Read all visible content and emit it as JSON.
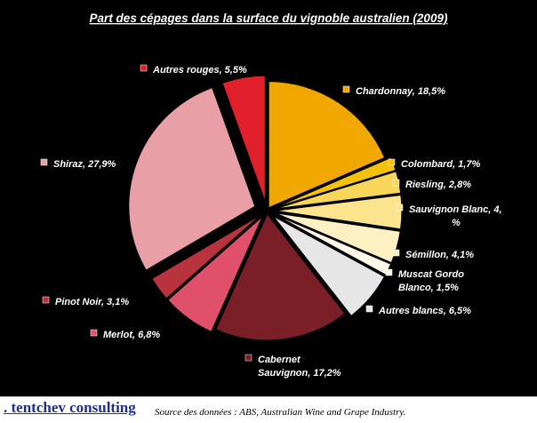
{
  "chart_data": {
    "type": "pie",
    "title": "Part des cépages dans la surface du vignoble australien (2009)",
    "slices": [
      {
        "label": "Chardonnay, 18,5%",
        "value": 18.5,
        "color": "#f0a800"
      },
      {
        "label": "Colombard, 1,7%",
        "value": 1.7,
        "color": "#f4c20d"
      },
      {
        "label": "Riesling, 2,8%",
        "value": 2.8,
        "color": "#f8d65a"
      },
      {
        "label": "Sauvignon Blanc, 4,3%",
        "value": 4.3,
        "color": "#fbe48e"
      },
      {
        "label": "Sémillon, 4,1%",
        "value": 4.1,
        "color": "#fdf0c2"
      },
      {
        "label": "Muscat Gordo Blanco, 1,5%",
        "value": 1.5,
        "color": "#fff8e6"
      },
      {
        "label": "Autres blancs, 6,5%",
        "value": 6.5,
        "color": "#e6e6e6"
      },
      {
        "label": "Cabernet Sauvignon, 17,2%",
        "value": 17.2,
        "color": "#7a1e28"
      },
      {
        "label": "Merlot, 6,8%",
        "value": 6.8,
        "color": "#e0506a"
      },
      {
        "label": "Pinot Noir, 3,1%",
        "value": 3.1,
        "color": "#b8333d"
      },
      {
        "label": "Shiraz, 27,9%",
        "value": 27.9,
        "color": "#e8a0a6"
      },
      {
        "label": "Autres rouges, 5,5%",
        "value": 5.5,
        "color": "#e2202c"
      }
    ]
  },
  "footer": {
    "brand": ". tentchev consulting",
    "source": "Source des données : ABS, Australian Wine and Grape Industry."
  }
}
